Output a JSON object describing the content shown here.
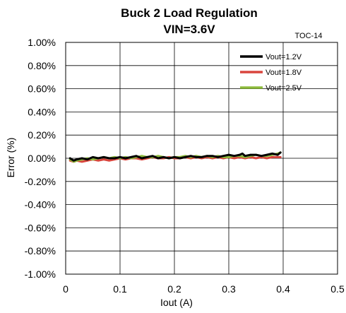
{
  "chart_data": {
    "type": "line",
    "title": "Buck 2 Load Regulation",
    "subtitle": "VIN=3.6V",
    "figure_tag": "TOC-14",
    "xlabel": "Iout (A)",
    "ylabel": "Error (%)",
    "xlim": [
      0,
      0.5
    ],
    "ylim": [
      -1.0,
      1.0
    ],
    "x_ticks": [
      0,
      0.1,
      0.2,
      0.3,
      0.4,
      0.5
    ],
    "x_tick_labels": [
      "0",
      "0.1",
      "0.2",
      "0.3",
      "0.4",
      "0.5"
    ],
    "y_ticks": [
      1.0,
      0.8,
      0.6,
      0.4,
      0.2,
      0.0,
      -0.2,
      -0.4,
      -0.6,
      -0.8,
      -1.0
    ],
    "y_tick_labels": [
      "1.00%",
      "0.80%",
      "0.60%",
      "0.40%",
      "0.20%",
      "0.00%",
      "-0.20%",
      "-0.40%",
      "-0.60%",
      "-0.80%",
      "-1.00%"
    ],
    "grid": true,
    "legend_position": "top-right",
    "series": [
      {
        "name": "Vout=1.2V",
        "color": "#000000",
        "x": [
          0.008,
          0.015,
          0.02,
          0.03,
          0.04,
          0.05,
          0.06,
          0.07,
          0.08,
          0.09,
          0.1,
          0.11,
          0.12,
          0.13,
          0.14,
          0.15,
          0.16,
          0.17,
          0.18,
          0.19,
          0.2,
          0.21,
          0.22,
          0.23,
          0.24,
          0.25,
          0.26,
          0.27,
          0.28,
          0.29,
          0.3,
          0.31,
          0.32,
          0.325,
          0.33,
          0.34,
          0.35,
          0.36,
          0.37,
          0.38,
          0.39,
          0.395
        ],
        "y": [
          0.0,
          -0.02,
          -0.01,
          0.0,
          -0.01,
          0.01,
          0.0,
          0.01,
          0.0,
          0.0,
          0.01,
          0.0,
          0.01,
          0.02,
          0.0,
          0.01,
          0.02,
          0.0,
          0.01,
          0.0,
          0.01,
          0.0,
          0.01,
          0.02,
          0.01,
          0.01,
          0.02,
          0.02,
          0.01,
          0.02,
          0.03,
          0.02,
          0.03,
          0.04,
          0.02,
          0.03,
          0.03,
          0.02,
          0.03,
          0.04,
          0.03,
          0.05
        ]
      },
      {
        "name": "Vout=1.8V",
        "color": "#d9453d",
        "x": [
          0.008,
          0.015,
          0.02,
          0.03,
          0.04,
          0.05,
          0.06,
          0.07,
          0.08,
          0.09,
          0.1,
          0.11,
          0.12,
          0.13,
          0.14,
          0.15,
          0.16,
          0.17,
          0.18,
          0.19,
          0.2,
          0.21,
          0.22,
          0.23,
          0.24,
          0.25,
          0.26,
          0.27,
          0.28,
          0.29,
          0.3,
          0.31,
          0.32,
          0.33,
          0.34,
          0.35,
          0.36,
          0.37,
          0.38,
          0.39,
          0.395
        ],
        "y": [
          -0.02,
          -0.03,
          -0.02,
          -0.03,
          -0.02,
          -0.01,
          -0.02,
          -0.01,
          -0.02,
          -0.01,
          0.0,
          -0.01,
          0.0,
          0.0,
          -0.01,
          0.0,
          0.01,
          0.0,
          0.0,
          0.01,
          0.0,
          0.0,
          0.01,
          0.0,
          0.01,
          0.0,
          0.01,
          0.0,
          0.01,
          0.0,
          0.01,
          0.0,
          0.01,
          0.0,
          0.01,
          0.0,
          0.01,
          0.0,
          0.01,
          0.01,
          0.01
        ]
      },
      {
        "name": "Vout=2.5V",
        "color": "#8dbb3c",
        "x": [
          0.008,
          0.015,
          0.02,
          0.03,
          0.04,
          0.05,
          0.06,
          0.07,
          0.08,
          0.09,
          0.1,
          0.11,
          0.12,
          0.13,
          0.14,
          0.15,
          0.16,
          0.17,
          0.18,
          0.19,
          0.2,
          0.21,
          0.22,
          0.23,
          0.24,
          0.25,
          0.26,
          0.27,
          0.28,
          0.29,
          0.3,
          0.31,
          0.32,
          0.33,
          0.34,
          0.35,
          0.36,
          0.37,
          0.38,
          0.39,
          0.395
        ],
        "y": [
          -0.01,
          -0.03,
          -0.02,
          -0.01,
          0.0,
          -0.01,
          0.0,
          0.01,
          0.0,
          0.01,
          0.0,
          0.01,
          0.0,
          0.01,
          0.02,
          0.01,
          0.01,
          0.02,
          0.01,
          0.0,
          0.01,
          0.01,
          0.02,
          0.01,
          0.02,
          0.01,
          0.02,
          0.01,
          0.02,
          0.01,
          0.01,
          0.02,
          0.02,
          0.01,
          0.02,
          0.03,
          0.02,
          0.02,
          0.03,
          0.04,
          0.05
        ]
      }
    ]
  }
}
